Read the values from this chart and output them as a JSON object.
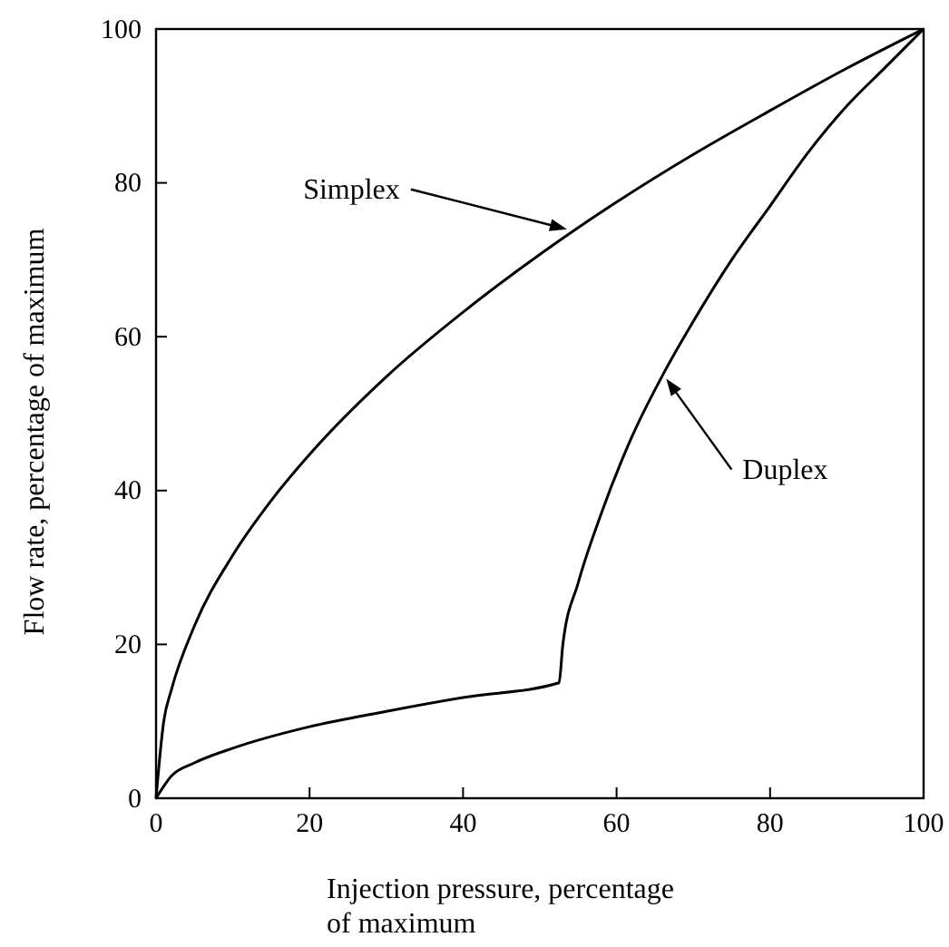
{
  "chart_data": {
    "type": "line",
    "xlabel": "Injection pressure, percentage\nof maximum",
    "ylabel": "Flow rate, percentage of maximum",
    "xlim": [
      0,
      100
    ],
    "ylim": [
      0,
      100
    ],
    "xticks": [
      0,
      20,
      40,
      60,
      80,
      100
    ],
    "yticks": [
      0,
      20,
      40,
      60,
      80,
      100
    ],
    "grid": false,
    "marker": "none",
    "annotations": [
      {
        "text": "Simplex",
        "x": 54,
        "y": 73.5
      },
      {
        "text": "Duplex",
        "x": 66,
        "y": 55
      }
    ],
    "line_style": "solid",
    "series": [
      {
        "color": "#000000",
        "x": [
          0,
          1,
          2,
          5,
          10,
          15,
          20,
          30,
          40,
          50,
          54,
          60,
          70,
          80,
          90,
          100
        ],
        "values": [
          0,
          10,
          14.1,
          22.4,
          31.6,
          38.7,
          44.7,
          54.8,
          63.2,
          70.7,
          73.5,
          77.5,
          83.7,
          89.4,
          94.9,
          100
        ]
      },
      {
        "color": "#000000",
        "x": [
          0,
          2,
          5,
          10,
          20,
          30,
          40,
          52.5,
          53,
          55,
          58,
          62,
          66,
          70,
          75,
          80,
          85,
          90,
          95,
          100
        ],
        "values": [
          0,
          2.9,
          4.6,
          6.5,
          9.3,
          11.3,
          13.1,
          15,
          20,
          28,
          37,
          47,
          55,
          62,
          70,
          77,
          84,
          90,
          95,
          100
        ]
      }
    ]
  }
}
